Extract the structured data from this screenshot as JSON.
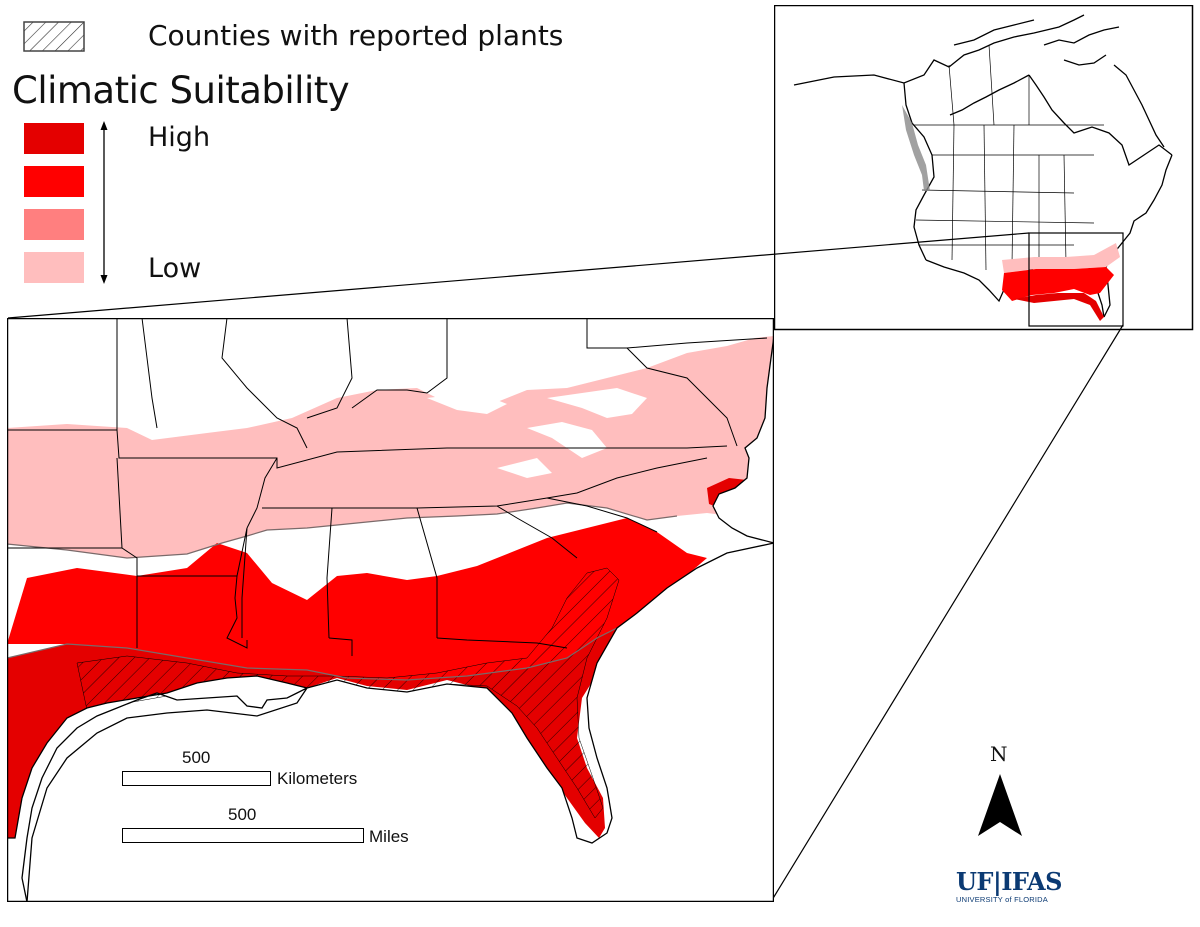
{
  "legend": {
    "hatch_label": "Counties with reported plants",
    "title": "Climatic Suitability",
    "high_label": "High",
    "low_label": "Low",
    "swatch_colors": [
      "#e40000",
      "#ff0000",
      "#ff7f7f",
      "#ffbebe"
    ]
  },
  "scale_bar": {
    "km_value": "500",
    "km_unit": "Kilometers",
    "mi_value": "500",
    "mi_unit": "Miles"
  },
  "north_arrow": {
    "label": "N",
    "icon": "north-arrow-icon"
  },
  "logo": {
    "main": "UF|IFAS",
    "sub": "UNIVERSITY of FLORIDA",
    "color": "#0b3a73"
  },
  "colors": {
    "high": "#e40000",
    "mid_high": "#ff0000",
    "mid_low": "#ff7f7f",
    "low": "#ffbebe",
    "outline": "#000000",
    "contour": "#7a6a6a"
  }
}
